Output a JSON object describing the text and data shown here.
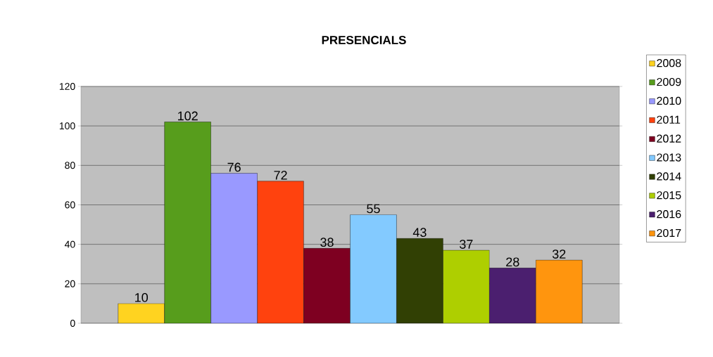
{
  "chart_data": {
    "type": "bar",
    "title": "PRESENCIALS",
    "categories": [
      null
    ],
    "series": [
      {
        "name": "2008",
        "color": "#ffd320",
        "values": [
          10
        ]
      },
      {
        "name": "2009",
        "color": "#579d1c",
        "values": [
          102
        ]
      },
      {
        "name": "2010",
        "color": "#9999ff",
        "values": [
          76
        ]
      },
      {
        "name": "2011",
        "color": "#ff420e",
        "values": [
          72
        ]
      },
      {
        "name": "2012",
        "color": "#7e0021",
        "values": [
          38
        ]
      },
      {
        "name": "2013",
        "color": "#83caff",
        "values": [
          55
        ]
      },
      {
        "name": "2014",
        "color": "#314004",
        "values": [
          43
        ]
      },
      {
        "name": "2015",
        "color": "#aecf00",
        "values": [
          37
        ]
      },
      {
        "name": "2016",
        "color": "#4b1f6f",
        "values": [
          28
        ]
      },
      {
        "name": "2017",
        "color": "#ff950e",
        "values": [
          32
        ]
      }
    ],
    "ylim": [
      0,
      120
    ],
    "yticks": [
      0,
      20,
      40,
      60,
      80,
      100,
      120
    ],
    "grid": "y",
    "legend": "right",
    "data_labels": true
  }
}
